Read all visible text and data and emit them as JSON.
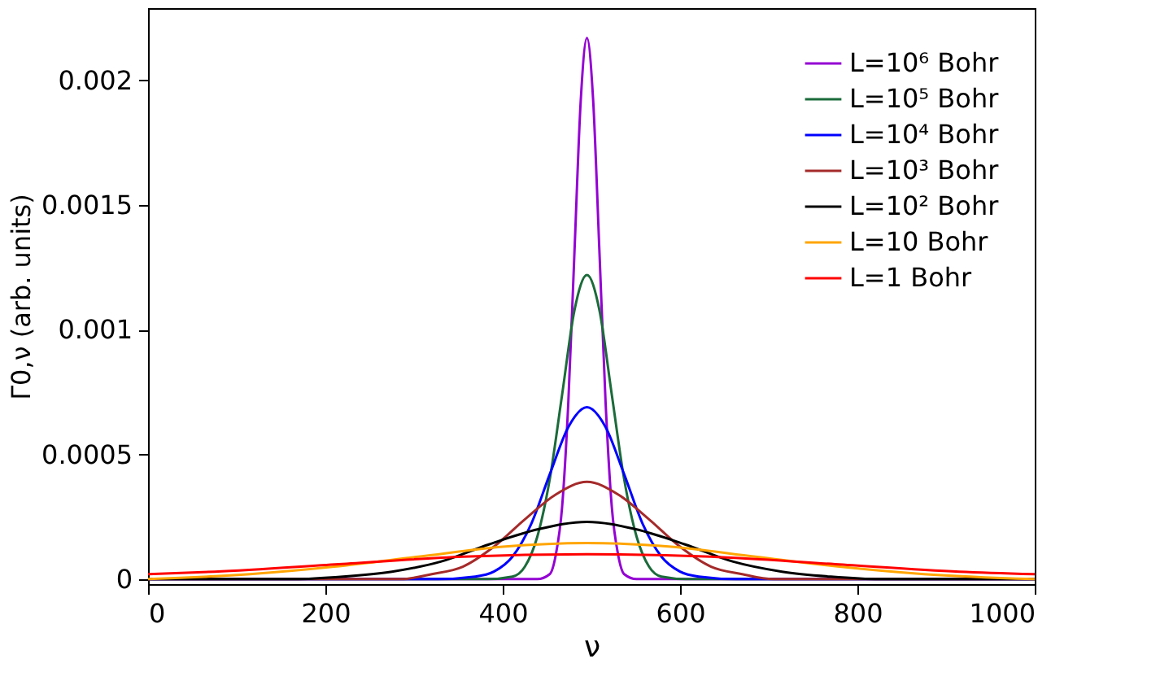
{
  "chart_data": {
    "type": "line",
    "xlabel": "ν",
    "ylabel": "Γ0,ν (arb. units)",
    "xlim": [
      0,
      1000
    ],
    "ylim": [
      -2e-05,
      0.00229
    ],
    "xticks": [
      0,
      200,
      400,
      600,
      800,
      1000
    ],
    "yticks": [
      0,
      0.0005,
      0.001,
      0.0015,
      0.002
    ],
    "grid": false,
    "legend": "top right",
    "line_style": "solid",
    "marker": "none",
    "series": [
      {
        "name": "L=10⁶ Bohr",
        "color": "#9400d3",
        "x": [
          0,
          400,
          439,
          453,
          460,
          467,
          474,
          481,
          488,
          495,
          502,
          509,
          516,
          523,
          530,
          537,
          551,
          590,
          1000
        ],
        "values": [
          0,
          0,
          0,
          2e-05,
          0.0001,
          0.00029,
          0.00071,
          0.00132,
          0.00192,
          0.00217,
          0.00192,
          0.00132,
          0.00071,
          0.00029,
          0.0001,
          2e-05,
          0,
          0,
          0
        ]
      },
      {
        "name": "L=10⁵ Bohr",
        "color": "#1b6b3a",
        "x": [
          0,
          340,
          383,
          411,
          425,
          439,
          453,
          467,
          481,
          495,
          509,
          523,
          537,
          551,
          565,
          579,
          607,
          650,
          1000
        ],
        "values": [
          0,
          0,
          0,
          1e-05,
          5e-05,
          0.00017,
          0.0004,
          0.00074,
          0.00108,
          0.00122,
          0.00108,
          0.00074,
          0.0004,
          0.00017,
          5e-05,
          1e-05,
          0,
          0,
          0
        ]
      },
      {
        "name": "L=10⁴ Bohr",
        "color": "#0000ff",
        "x": [
          0,
          327,
          369,
          390,
          411,
          432,
          453,
          474,
          495,
          516,
          537,
          558,
          579,
          600,
          621,
          663,
          1000
        ],
        "values": [
          0,
          0,
          1e-05,
          3e-05,
          9e-05,
          0.00022,
          0.00042,
          0.00061,
          0.00069,
          0.00061,
          0.00042,
          0.00022,
          9e-05,
          3e-05,
          1e-05,
          0,
          0
        ]
      },
      {
        "name": "L=10³ Bohr",
        "color": "#a52a2a",
        "x": [
          0,
          215,
          285,
          320,
          355,
          390,
          425,
          460,
          495,
          530,
          565,
          600,
          635,
          670,
          705,
          775,
          1000
        ],
        "values": [
          0,
          0,
          0,
          2e-05,
          5e-05,
          0.00013,
          0.00024,
          0.00034,
          0.00039,
          0.00034,
          0.00024,
          0.00013,
          5e-05,
          2e-05,
          0,
          0,
          0
        ]
      },
      {
        "name": "L=10² Bohr",
        "color": "#000000",
        "x": [
          0,
          55,
          165,
          220,
          275,
          330,
          385,
          440,
          495,
          550,
          605,
          660,
          715,
          770,
          825,
          935,
          1000
        ],
        "values": [
          0,
          0,
          0,
          1e-05,
          3e-05,
          7e-05,
          0.00014,
          0.0002,
          0.00023,
          0.0002,
          0.00014,
          7e-05,
          3e-05,
          1e-05,
          0,
          0,
          0
        ]
      },
      {
        "name": "L=10 Bohr",
        "color": "#ffa500",
        "x": [
          0,
          115,
          210,
          305,
          400,
          495,
          590,
          685,
          780,
          875,
          1000
        ],
        "values": [
          0,
          2e-05,
          5e-05,
          9e-05,
          0.00013,
          0.000145,
          0.00013,
          9e-05,
          5e-05,
          2e-05,
          0
        ]
      },
      {
        "name": "L=1 Bohr",
        "color": "#ff0000",
        "x": [
          0,
          75,
          215,
          355,
          495,
          635,
          775,
          915,
          1000
        ],
        "values": [
          2e-05,
          3e-05,
          6e-05,
          9e-05,
          0.0001,
          9e-05,
          6e-05,
          3e-05,
          2e-05
        ]
      }
    ]
  }
}
